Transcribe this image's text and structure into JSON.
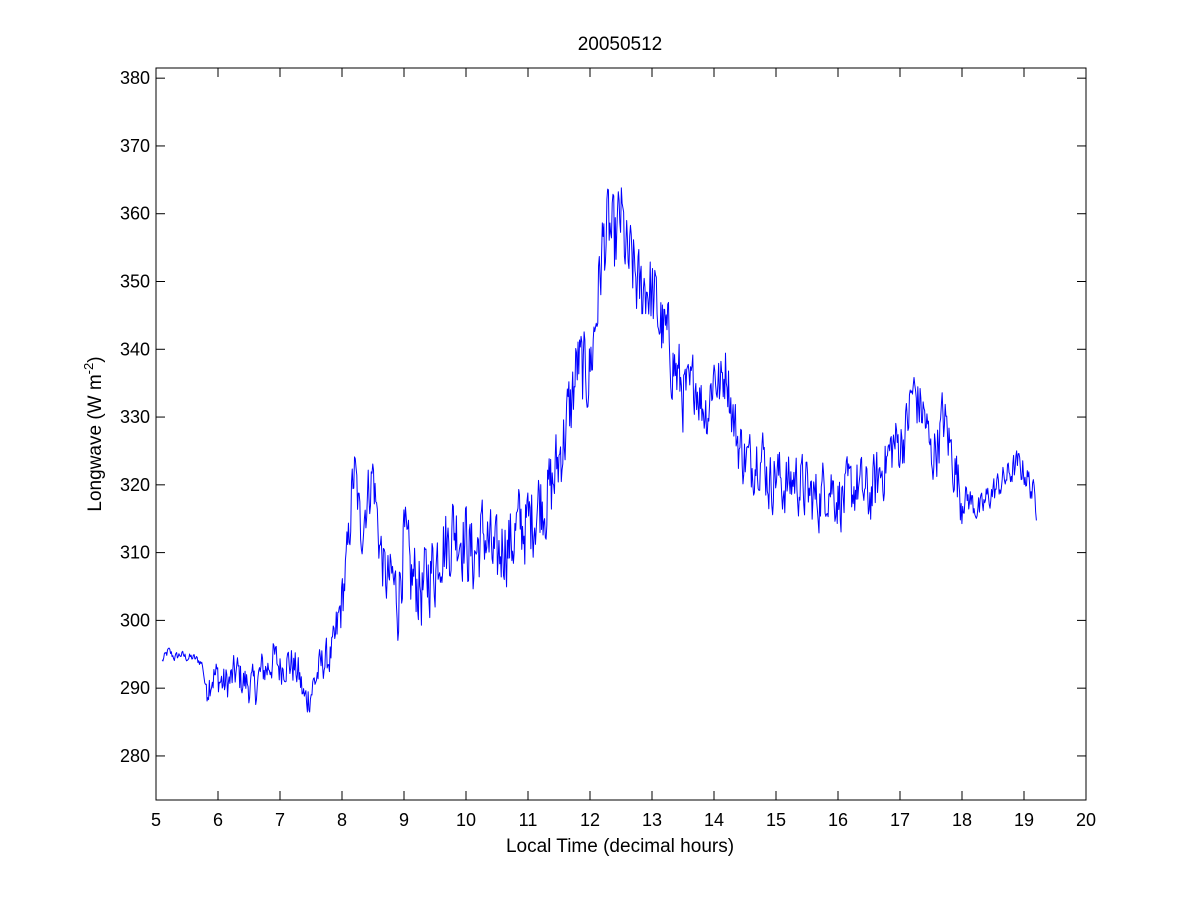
{
  "chart_data": {
    "type": "line",
    "title": "20050512",
    "xlabel": "Local Time (decimal hours)",
    "ylabel": {
      "main": "Longwave (W m",
      "superscript": "-2",
      "close": ")"
    },
    "xlim": [
      5,
      20
    ],
    "ylim": [
      273.5,
      381.5
    ],
    "xticks": [
      5,
      6,
      7,
      8,
      9,
      10,
      11,
      12,
      13,
      14,
      15,
      16,
      17,
      18,
      19,
      20
    ],
    "yticks": [
      280,
      290,
      300,
      310,
      320,
      330,
      340,
      350,
      360,
      370,
      380
    ],
    "grid": false,
    "box": true,
    "series": [
      {
        "color": "#0000ff",
        "x": [
          5.1,
          5.2,
          5.3,
          5.4,
          5.5,
          5.6,
          5.7,
          5.75,
          5.8,
          5.9,
          6.0,
          6.1,
          6.2,
          6.3,
          6.4,
          6.5,
          6.6,
          6.7,
          6.8,
          6.9,
          7.0,
          7.1,
          7.2,
          7.3,
          7.4,
          7.5,
          7.6,
          7.7,
          7.8,
          7.9,
          8.0,
          8.1,
          8.15,
          8.2,
          8.25,
          8.3,
          8.4,
          8.5,
          8.6,
          8.7,
          8.8,
          8.9,
          9.0,
          9.1,
          9.2,
          9.3,
          9.4,
          9.5,
          9.6,
          9.7,
          9.8,
          9.9,
          10.0,
          10.1,
          10.2,
          10.3,
          10.4,
          10.5,
          10.6,
          10.7,
          10.8,
          10.9,
          11.0,
          11.1,
          11.2,
          11.3,
          11.4,
          11.5,
          11.6,
          11.7,
          11.8,
          11.9,
          12.0,
          12.1,
          12.2,
          12.3,
          12.4,
          12.5,
          12.55,
          12.6,
          12.7,
          12.8,
          12.9,
          13.0,
          13.1,
          13.2,
          13.3,
          13.4,
          13.5,
          13.6,
          13.7,
          13.8,
          13.9,
          14.0,
          14.1,
          14.2,
          14.3,
          14.4,
          14.5,
          14.6,
          14.7,
          14.8,
          14.9,
          15.0,
          15.1,
          15.2,
          15.3,
          15.4,
          15.5,
          15.6,
          15.7,
          15.8,
          15.9,
          16.0,
          16.1,
          16.2,
          16.3,
          16.4,
          16.5,
          16.6,
          16.7,
          16.8,
          16.9,
          17.0,
          17.1,
          17.2,
          17.3,
          17.4,
          17.5,
          17.6,
          17.7,
          17.8,
          17.9,
          18.0,
          18.1,
          18.2,
          18.3,
          18.4,
          18.5,
          18.6,
          18.7,
          18.8,
          18.9,
          19.0,
          19.1,
          19.2
        ],
        "y": [
          294.0,
          295.5,
          294.5,
          295.0,
          294.5,
          294.5,
          294.0,
          293.5,
          290.0,
          292.0,
          291.5,
          290.5,
          291.0,
          292.5,
          291.0,
          290.5,
          290.0,
          292.5,
          293.0,
          294.5,
          293.0,
          294.0,
          293.5,
          292.0,
          288.0,
          289.5,
          292.0,
          294.0,
          294.5,
          297.0,
          303.0,
          310.0,
          318.0,
          322.0,
          318.0,
          313.0,
          318.0,
          322.0,
          312.0,
          306.0,
          306.0,
          303.0,
          312.0,
          306.0,
          306.0,
          304.0,
          307.0,
          308.0,
          312.0,
          311.0,
          314.0,
          313.0,
          312.0,
          309.0,
          311.0,
          313.0,
          310.0,
          308.0,
          312.0,
          311.0,
          313.0,
          314.0,
          314.0,
          316.0,
          318.0,
          318.0,
          320.0,
          324.0,
          328.0,
          332.0,
          338.0,
          336.0,
          337.0,
          345.0,
          355.0,
          358.0,
          355.0,
          360.0,
          356.0,
          353.0,
          352.0,
          348.0,
          350.0,
          348.0,
          345.0,
          342.0,
          340.0,
          336.0,
          334.0,
          333.0,
          336.0,
          332.0,
          331.0,
          337.0,
          334.0,
          338.0,
          330.0,
          326.0,
          324.0,
          323.0,
          325.0,
          324.0,
          320.0,
          322.0,
          320.0,
          320.0,
          321.0,
          320.0,
          319.0,
          318.0,
          318.0,
          320.0,
          320.0,
          318.0,
          318.0,
          319.0,
          320.0,
          319.0,
          318.0,
          320.0,
          322.0,
          324.0,
          326.0,
          326.0,
          328.0,
          334.0,
          332.0,
          330.0,
          324.0,
          326.0,
          330.0,
          326.0,
          322.0,
          318.0,
          318.0,
          317.0,
          316.0,
          318.0,
          319.0,
          320.0,
          321.0,
          322.0,
          323.0,
          322.0,
          320.0,
          317.0
        ]
      }
    ]
  }
}
